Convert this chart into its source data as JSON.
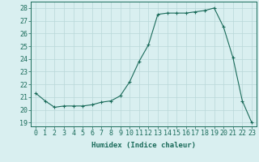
{
  "x": [
    0,
    1,
    2,
    3,
    4,
    5,
    6,
    7,
    8,
    9,
    10,
    11,
    12,
    13,
    14,
    15,
    16,
    17,
    18,
    19,
    20,
    21,
    22,
    23
  ],
  "y": [
    21.3,
    20.7,
    20.2,
    20.3,
    20.3,
    20.3,
    20.4,
    20.6,
    20.7,
    21.1,
    22.2,
    23.8,
    25.1,
    27.5,
    27.6,
    27.6,
    27.6,
    27.7,
    27.8,
    28.0,
    26.5,
    24.1,
    20.7,
    19.0
  ],
  "line_color": "#1a6b5a",
  "marker": "+",
  "marker_size": 3.5,
  "bg_color": "#d9eff0",
  "grid_color": "#b8d8d8",
  "tick_color": "#1a6b5a",
  "xlabel": "Humidex (Indice chaleur)",
  "ylabel_ticks": [
    19,
    20,
    21,
    22,
    23,
    24,
    25,
    26,
    27,
    28
  ],
  "xlim": [
    -0.5,
    23.5
  ],
  "ylim": [
    18.7,
    28.5
  ],
  "xlabel_fontsize": 6.5,
  "tick_fontsize": 6.0
}
